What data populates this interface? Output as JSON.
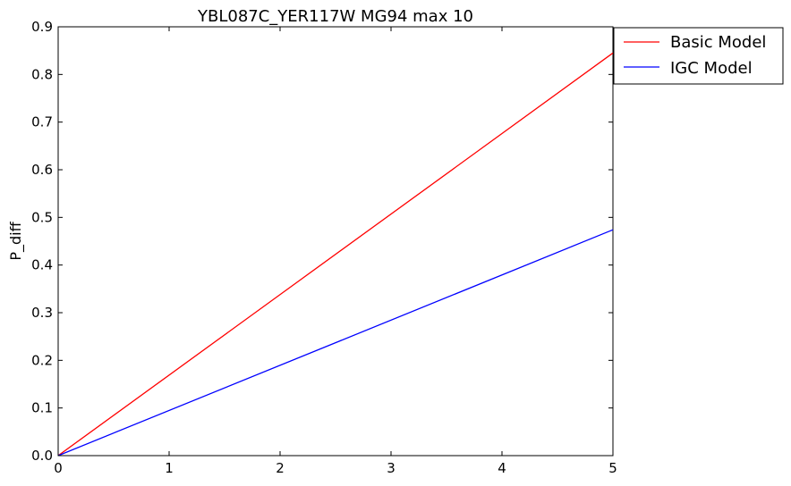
{
  "chart_data": {
    "type": "line",
    "title": "YBL087C_YER117W MG94 max 10",
    "xlabel": "",
    "ylabel": "P_diff",
    "xlim": [
      0,
      5
    ],
    "ylim": [
      0,
      0.9
    ],
    "xticks": [
      "0",
      "1",
      "2",
      "3",
      "4",
      "5"
    ],
    "yticks": [
      "0.0",
      "0.1",
      "0.2",
      "0.3",
      "0.4",
      "0.5",
      "0.6",
      "0.7",
      "0.8",
      "0.9"
    ],
    "grid": false,
    "legend_position": "outside-top-right",
    "series": [
      {
        "name": "Basic Model",
        "color": "#ff0000",
        "x": [
          0,
          5
        ],
        "y": [
          0,
          0.845
        ]
      },
      {
        "name": "IGC Model",
        "color": "#0000ff",
        "x": [
          0,
          5
        ],
        "y": [
          0,
          0.474
        ]
      }
    ]
  }
}
